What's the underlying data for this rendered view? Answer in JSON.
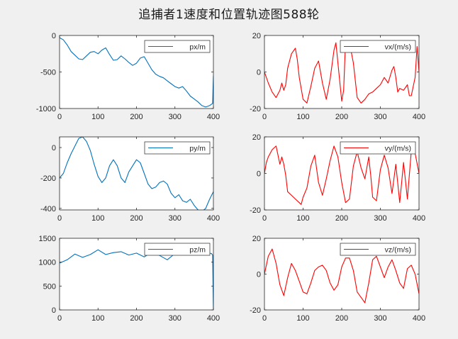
{
  "figure": {
    "title": "追捕者1速度和位置轨迹图588轮",
    "background": "#f0f0f0"
  },
  "chart_data": [
    {
      "type": "line",
      "id": "px",
      "series": [
        {
          "name": "px/m",
          "color": "#0072bd",
          "x": [
            0,
            10,
            20,
            30,
            40,
            50,
            60,
            70,
            80,
            90,
            100,
            110,
            120,
            130,
            140,
            150,
            160,
            170,
            180,
            190,
            200,
            210,
            220,
            230,
            240,
            250,
            260,
            270,
            280,
            290,
            300,
            310,
            320,
            330,
            340,
            350,
            360,
            370,
            380,
            390,
            398,
            400
          ],
          "y": [
            -30,
            -60,
            -130,
            -220,
            -270,
            -320,
            -330,
            -280,
            -230,
            -220,
            -250,
            -200,
            -170,
            -260,
            -340,
            -330,
            -280,
            -320,
            -370,
            -410,
            -380,
            -310,
            -290,
            -380,
            -470,
            -530,
            -560,
            -580,
            -620,
            -660,
            -700,
            -720,
            -700,
            -760,
            -830,
            -870,
            -910,
            -960,
            -980,
            -960,
            -930,
            -550
          ]
        }
      ],
      "xlim": [
        0,
        400
      ],
      "ylim": [
        -1000,
        0
      ],
      "xticks": [
        0,
        100,
        200,
        300,
        400
      ],
      "yticks": [
        -1000,
        -500,
        0
      ],
      "xtick_labels": [
        "0",
        "100",
        "200",
        "300",
        "400"
      ],
      "ytick_labels": [
        "-1000",
        "-500",
        "0"
      ],
      "legend": "top-right"
    },
    {
      "type": "line",
      "id": "vx",
      "series": [
        {
          "name": "vx/(m/s)",
          "color": "#ff0000",
          "x": [
            0,
            10,
            20,
            30,
            40,
            45,
            50,
            55,
            60,
            70,
            80,
            85,
            90,
            100,
            110,
            120,
            130,
            140,
            150,
            160,
            170,
            180,
            185,
            190,
            200,
            205,
            210,
            220,
            230,
            240,
            250,
            255,
            260,
            270,
            280,
            290,
            300,
            310,
            320,
            330,
            335,
            340,
            345,
            350,
            360,
            370,
            375,
            380,
            390,
            395,
            400
          ],
          "y": [
            0,
            -6,
            -11,
            -14,
            -10,
            -6,
            -10,
            -7,
            2,
            10,
            13,
            7,
            -3,
            -15,
            -17,
            -8,
            2,
            6,
            -6,
            -15,
            -4,
            12,
            16,
            5,
            -16,
            -10,
            17,
            16,
            5,
            -14,
            -17,
            -16,
            -15,
            -12,
            -11,
            -9,
            -7,
            -3,
            -6,
            1,
            3,
            -3,
            -11,
            -9,
            -10,
            -7,
            -13,
            -13,
            -3,
            14,
            0
          ],
          "annotations": "xy_estimated"
        }
      ],
      "xlim": [
        0,
        400
      ],
      "ylim": [
        -20,
        20
      ],
      "xticks": [
        0,
        100,
        200,
        300,
        400
      ],
      "yticks": [
        -20,
        0,
        20
      ],
      "xtick_labels": [
        "0",
        "100",
        "200",
        "300",
        "400"
      ],
      "ytick_labels": [
        "-20",
        "0",
        "20"
      ],
      "legend": "top-right"
    },
    {
      "type": "line",
      "id": "py",
      "series": [
        {
          "name": "py/m",
          "color": "#0072bd",
          "x": [
            0,
            10,
            20,
            30,
            40,
            50,
            60,
            70,
            80,
            90,
            100,
            110,
            120,
            130,
            140,
            150,
            160,
            170,
            180,
            190,
            200,
            210,
            220,
            230,
            240,
            250,
            260,
            270,
            280,
            290,
            300,
            310,
            320,
            330,
            340,
            350,
            360,
            370,
            380,
            390,
            400
          ],
          "y": [
            -200,
            -170,
            -100,
            -40,
            10,
            60,
            70,
            40,
            -20,
            -110,
            -190,
            -230,
            -200,
            -120,
            -80,
            -120,
            -200,
            -230,
            -160,
            -120,
            -80,
            -100,
            -170,
            -240,
            -270,
            -260,
            -230,
            -220,
            -240,
            -300,
            -330,
            -310,
            -350,
            -360,
            -340,
            -380,
            -410,
            -420,
            -400,
            -340,
            -290
          ]
        }
      ],
      "xlim": [
        0,
        400
      ],
      "ylim": [
        -410,
        70
      ],
      "xticks": [
        0,
        100,
        200,
        300,
        400
      ],
      "yticks": [
        -400,
        -200,
        0
      ],
      "xtick_labels": [
        "0",
        "100",
        "200",
        "300",
        "400"
      ],
      "ytick_labels": [
        "-400",
        "-200",
        "0"
      ],
      "legend": "top-right"
    },
    {
      "type": "line",
      "id": "vy",
      "series": [
        {
          "name": "vy/(m/s)",
          "color": "#ff0000",
          "x": [
            0,
            5,
            10,
            20,
            30,
            40,
            45,
            50,
            55,
            60,
            70,
            80,
            90,
            95,
            100,
            110,
            120,
            130,
            140,
            150,
            160,
            170,
            180,
            190,
            200,
            210,
            220,
            230,
            240,
            250,
            260,
            270,
            275,
            280,
            290,
            300,
            310,
            320,
            330,
            340,
            350,
            360,
            370,
            380,
            390,
            400
          ],
          "y": [
            0,
            6,
            9,
            13,
            15,
            5,
            9,
            5,
            -1,
            -10,
            -12,
            -14,
            -16,
            -17,
            -13,
            -8,
            4,
            10,
            -5,
            -12,
            -3,
            7,
            15,
            9,
            -5,
            -16,
            -14,
            4,
            12,
            3,
            -3,
            9,
            -1,
            -13,
            -15,
            2,
            10,
            3,
            -11,
            5,
            -16,
            6,
            -14,
            12,
            11,
            0
          ],
          "annotations": "xy_estimated"
        }
      ],
      "xlim": [
        0,
        400
      ],
      "ylim": [
        -20,
        20
      ],
      "xticks": [
        0,
        100,
        200,
        300,
        400
      ],
      "yticks": [
        -20,
        0,
        20
      ],
      "xtick_labels": [
        "0",
        "100",
        "200",
        "300",
        "400"
      ],
      "ytick_labels": [
        "-20",
        "0",
        "20"
      ],
      "legend": "top-right"
    },
    {
      "type": "line",
      "id": "pz",
      "series": [
        {
          "name": "pz/m",
          "color": "#0072bd",
          "x": [
            0,
            20,
            40,
            60,
            80,
            100,
            120,
            140,
            160,
            180,
            200,
            220,
            240,
            260,
            280,
            300,
            320,
            340,
            360,
            380,
            395,
            398,
            400
          ],
          "y": [
            980,
            1050,
            1170,
            1100,
            1160,
            1260,
            1160,
            1200,
            1220,
            1150,
            1190,
            1110,
            1210,
            1140,
            1050,
            1180,
            1200,
            1190,
            1160,
            1200,
            1180,
            1150,
            0
          ]
        }
      ],
      "xlim": [
        0,
        400
      ],
      "ylim": [
        0,
        1500
      ],
      "xticks": [
        0,
        100,
        200,
        300,
        400
      ],
      "yticks": [
        0,
        500,
        1000,
        1500
      ],
      "xtick_labels": [
        "0",
        "100",
        "200",
        "300",
        "400"
      ],
      "ytick_labels": [
        "0",
        "500",
        "1000",
        "1500"
      ],
      "legend": "top-right"
    },
    {
      "type": "line",
      "id": "vz",
      "series": [
        {
          "name": "vz/(m/s)",
          "color": "#ff0000",
          "x": [
            0,
            10,
            20,
            30,
            40,
            50,
            60,
            70,
            80,
            90,
            100,
            110,
            120,
            130,
            140,
            150,
            160,
            170,
            180,
            190,
            200,
            210,
            220,
            230,
            240,
            250,
            260,
            270,
            280,
            290,
            300,
            310,
            320,
            330,
            340,
            350,
            360,
            370,
            380,
            390,
            400
          ],
          "y": [
            0,
            10,
            14,
            6,
            -6,
            -12,
            -2,
            6,
            2,
            -4,
            -10,
            -11,
            -5,
            2,
            4,
            5,
            2,
            -5,
            -9,
            -6,
            4,
            9,
            9,
            2,
            -10,
            -13,
            -16,
            -5,
            8,
            10,
            4,
            -2,
            4,
            8,
            2,
            -5,
            -8,
            3,
            5,
            0,
            -11
          ],
          "annotations": "xy_estimated"
        }
      ],
      "xlim": [
        0,
        400
      ],
      "ylim": [
        -20,
        20
      ],
      "xticks": [
        0,
        100,
        200,
        300,
        400
      ],
      "yticks": [
        -20,
        0,
        20
      ],
      "xtick_labels": [
        "0",
        "100",
        "200",
        "300",
        "400"
      ],
      "ytick_labels": [
        "-20",
        "0",
        "20"
      ],
      "legend": "top-right"
    }
  ]
}
